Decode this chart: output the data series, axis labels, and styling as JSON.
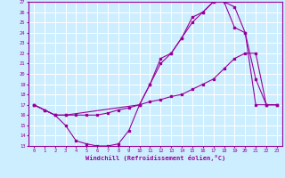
{
  "xlabel": "Windchill (Refroidissement éolien,°C)",
  "xlim": [
    -0.5,
    23.5
  ],
  "ylim": [
    13,
    27
  ],
  "xticks": [
    0,
    1,
    2,
    3,
    4,
    5,
    6,
    7,
    8,
    9,
    10,
    11,
    12,
    13,
    14,
    15,
    16,
    17,
    18,
    19,
    20,
    21,
    22,
    23
  ],
  "yticks": [
    13,
    14,
    15,
    16,
    17,
    18,
    19,
    20,
    21,
    22,
    23,
    24,
    25,
    26,
    27
  ],
  "color": "#990099",
  "bg_color": "#cceeff",
  "grid_color": "#ffffff",
  "line1_x": [
    0,
    1,
    2,
    3,
    4,
    5,
    6,
    7,
    8,
    9,
    10,
    11,
    12,
    13,
    14,
    15,
    16,
    17,
    18,
    19,
    20,
    21,
    22,
    23
  ],
  "line1_y": [
    17.0,
    16.5,
    16.0,
    15.0,
    13.5,
    13.2,
    13.0,
    13.0,
    13.2,
    14.5,
    17.0,
    19.0,
    21.5,
    22.0,
    23.5,
    25.0,
    26.0,
    27.0,
    27.0,
    24.5,
    24.0,
    19.5,
    17.0,
    17.0
  ],
  "line2_x": [
    0,
    1,
    2,
    3,
    4,
    5,
    6,
    7,
    8,
    9,
    10,
    11,
    12,
    13,
    14,
    15,
    16,
    17,
    18,
    19,
    20,
    21,
    22,
    23
  ],
  "line2_y": [
    17.0,
    16.5,
    16.0,
    16.0,
    16.0,
    16.0,
    16.0,
    16.2,
    16.5,
    16.7,
    17.0,
    17.3,
    17.5,
    17.8,
    18.0,
    18.5,
    19.0,
    19.5,
    20.5,
    21.5,
    22.0,
    22.0,
    17.0,
    17.0
  ],
  "line3_x": [
    0,
    2,
    3,
    10,
    11,
    12,
    13,
    14,
    15,
    16,
    17,
    18,
    19,
    20,
    21,
    22,
    23
  ],
  "line3_y": [
    17.0,
    16.0,
    16.0,
    17.0,
    19.0,
    21.0,
    22.0,
    23.5,
    25.5,
    26.0,
    27.0,
    27.0,
    26.5,
    24.0,
    17.0,
    17.0,
    17.0
  ]
}
